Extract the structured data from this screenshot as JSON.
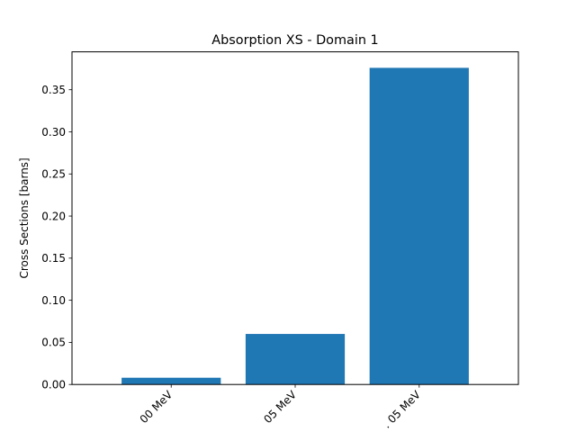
{
  "chart_data": {
    "type": "bar",
    "title": "Absorption XS - Domain 1",
    "xlabel": "",
    "ylabel": "Cross Sections [barns]",
    "categories": [
      "00 MeV",
      "05 MeV",
      ". 05 MeV"
    ],
    "values": [
      0.008,
      0.06,
      0.376
    ],
    "ylim": [
      0,
      0.395
    ],
    "yticks": [
      0.0,
      0.05,
      0.1,
      0.15,
      0.2,
      0.25,
      0.3,
      0.35
    ],
    "ytick_labels": [
      "0.00",
      "0.05",
      "0.10",
      "0.15",
      "0.20",
      "0.25",
      "0.30",
      "0.35"
    ],
    "grid": false,
    "legend": "none",
    "bar_color": "#1f77b4"
  }
}
